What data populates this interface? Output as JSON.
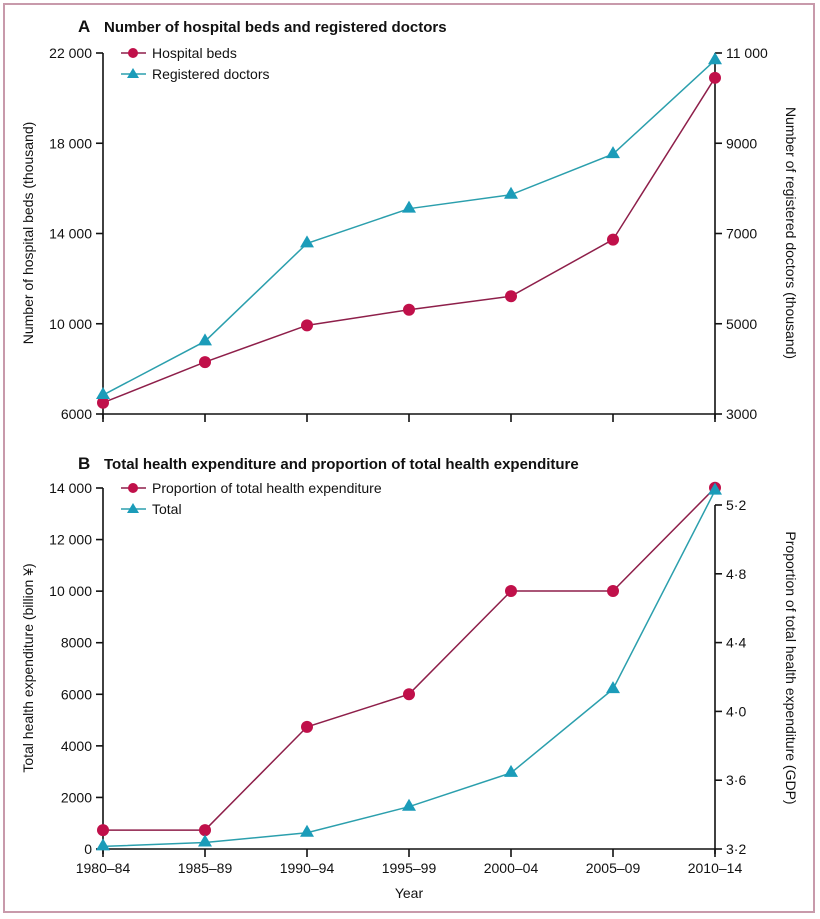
{
  "colors": {
    "series_red_marker": "#c0104a",
    "series_red_line": "#8e1f4a",
    "series_teal_marker": "#1b9cb9",
    "series_teal_line": "#2b9fad",
    "frame_border": "#c89aab"
  },
  "chart_data": [
    {
      "panel": "A",
      "type": "line",
      "title": "Number of hospital beds and registered doctors",
      "xlabel": "",
      "categories": [
        "1980–84",
        "1985–89",
        "1990–94",
        "1995–99",
        "2000–04",
        "2005–09",
        "2010–14"
      ],
      "ylabel_left": "Number of hospital beds (thousand)",
      "ylabel_right": "Number of registered doctors (thousand)",
      "ylim_left": [
        6000,
        22000
      ],
      "yticks_left": [
        6000,
        10000,
        14000,
        18000,
        22000
      ],
      "ytick_labels_left": [
        "6000",
        "10 000",
        "14 000",
        "18 000",
        "22 000"
      ],
      "ylim_right": [
        3000,
        11000
      ],
      "yticks_right": [
        3000,
        5000,
        7000,
        9000,
        11000
      ],
      "ytick_labels_right": [
        "3000",
        "5000",
        "7000",
        "9000",
        "11 000"
      ],
      "legend_position": "top-left",
      "grid": false,
      "series": [
        {
          "name": "Hospital beds",
          "axis": "left",
          "marker": "circle",
          "values": [
            6500,
            8300,
            9930,
            10620,
            11220,
            13730,
            20900
          ]
        },
        {
          "name": "Registered doctors",
          "axis": "right",
          "marker": "triangle",
          "values": [
            3420,
            4610,
            6780,
            7550,
            7860,
            8760,
            10840
          ]
        }
      ]
    },
    {
      "panel": "B",
      "type": "line",
      "title": "Total health expenditure and proportion of total health expenditure",
      "xlabel": "Year",
      "categories": [
        "1980–84",
        "1985–89",
        "1990–94",
        "1995–99",
        "2000–04",
        "2005–09",
        "2010–14"
      ],
      "ylabel_left": "Total health expenditure (billion ¥)",
      "ylabel_right": "Proportion of total health expenditure (GDP)",
      "ylim_left": [
        0,
        14000
      ],
      "yticks_left": [
        0,
        2000,
        4000,
        6000,
        8000,
        10000,
        12000,
        14000
      ],
      "ytick_labels_left": [
        "0",
        "2000",
        "4000",
        "6000",
        "8000",
        "10 000",
        "12 000",
        "14 000"
      ],
      "ylim_right": [
        3.2,
        5.2
      ],
      "yticks_right": [
        3.2,
        3.6,
        4.0,
        4.4,
        4.8,
        5.2
      ],
      "ytick_labels_right": [
        "3·2",
        "3·6",
        "4·0",
        "4·4",
        "4·8",
        "5·2"
      ],
      "legend_position": "top-left",
      "grid": false,
      "series": [
        {
          "name": "Proportion of total health expenditure",
          "axis": "right",
          "marker": "circle",
          "values": [
            3.31,
            3.31,
            3.91,
            4.1,
            4.7,
            4.7,
            5.3
          ]
        },
        {
          "name": "Total",
          "axis": "left",
          "marker": "triangle",
          "values": [
            100,
            250,
            630,
            1640,
            2950,
            6200,
            13900
          ]
        }
      ]
    }
  ]
}
